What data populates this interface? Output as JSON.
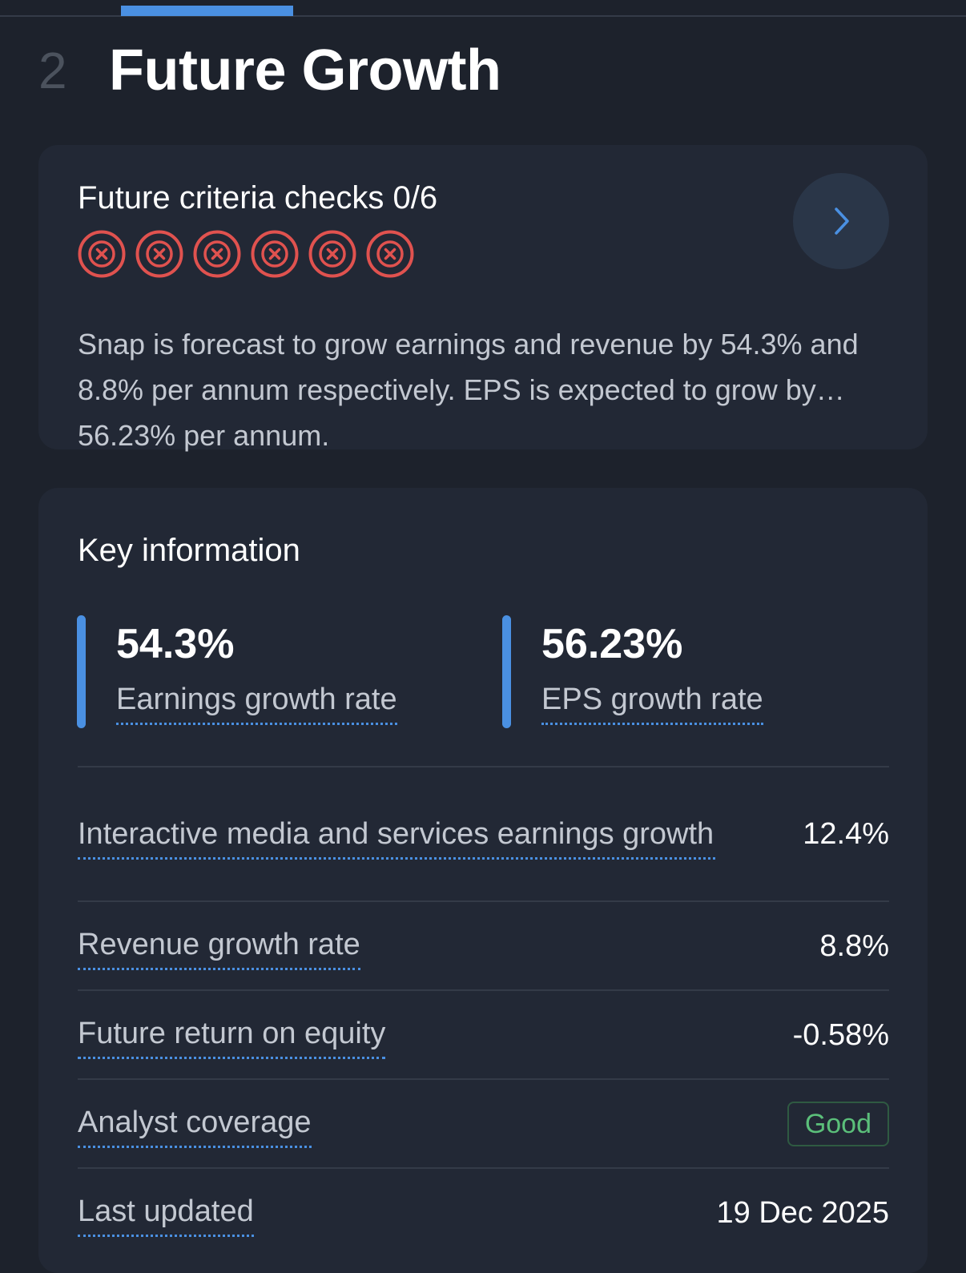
{
  "section": {
    "number": "2",
    "title": "Future Growth"
  },
  "criteria": {
    "title": "Future criteria checks 0/6",
    "checks": [
      "fail",
      "fail",
      "fail",
      "fail",
      "fail",
      "fail"
    ],
    "summary": "Snap is forecast to grow earnings and revenue by 54.3% and 8.8% per annum respectively. EPS is expected to grow by 56.23% per annum.",
    "nav_icon": "chevron-right-icon"
  },
  "key_info": {
    "title": "Key information",
    "stats": [
      {
        "value": "54.3%",
        "label": "Earnings growth rate"
      },
      {
        "value": "56.23%",
        "label": "EPS growth rate"
      }
    ],
    "rows": [
      {
        "label": "Interactive media and services earnings growth",
        "value": "12.4%"
      },
      {
        "label": "Revenue growth rate",
        "value": "8.8%"
      },
      {
        "label": "Future return on equity",
        "value": "-0.58%"
      },
      {
        "label": "Analyst coverage",
        "value": "Good"
      },
      {
        "label": "Last updated",
        "value": "19 Dec 2025"
      }
    ]
  },
  "colors": {
    "accent": "#4a90e2",
    "fail": "#e0524f",
    "good": "#5bbf7a",
    "background": "#1d222c",
    "card": "#222835"
  }
}
